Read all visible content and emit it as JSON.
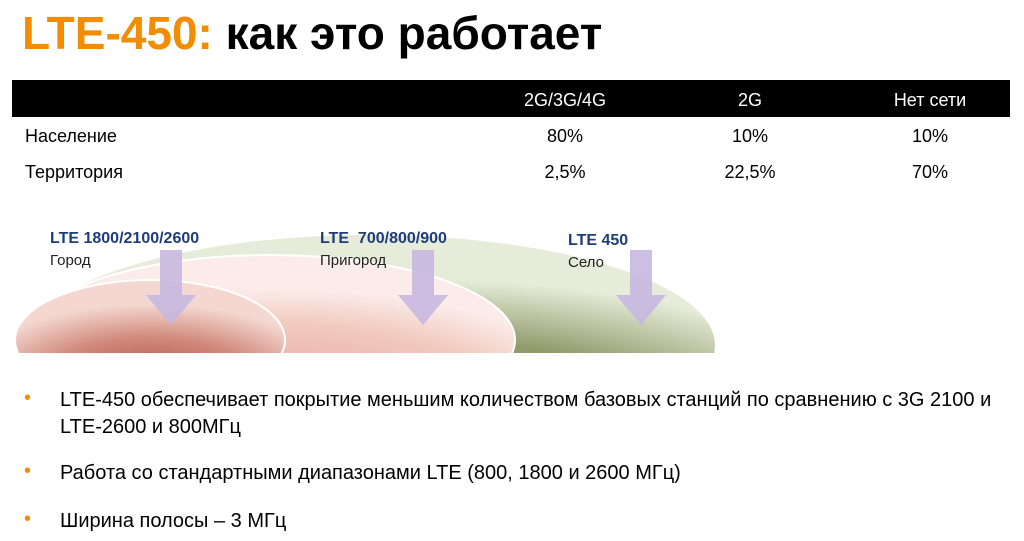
{
  "title": {
    "accent": "LTE-450:",
    "text": "как это работает"
  },
  "table": {
    "columns": [
      "2G/3G/4G",
      "2G",
      "Нет сети"
    ],
    "rows": [
      {
        "label": "Население",
        "cells": [
          "80%",
          "10%",
          "10%"
        ]
      },
      {
        "label": "Территория",
        "cells": [
          "2,5%",
          "22,5%",
          "70%"
        ]
      }
    ]
  },
  "zones": [
    {
      "band": "LTE 1800/2100/2600",
      "area": "Город"
    },
    {
      "band": "LTE  700/800/900",
      "area": "Пригород"
    },
    {
      "band": "LTE 450",
      "area": "Село"
    }
  ],
  "bullets": [
    "LTE-450 обеспечивает покрытие меньшим количеством базовых станций по сравнению с 3G 2100 и LTE-2600 и 800МГц",
    "Работа со стандартными диапазонами LTE (800, 1800 и 2600 МГц)",
    "Ширина полосы – 3 МГц"
  ]
}
